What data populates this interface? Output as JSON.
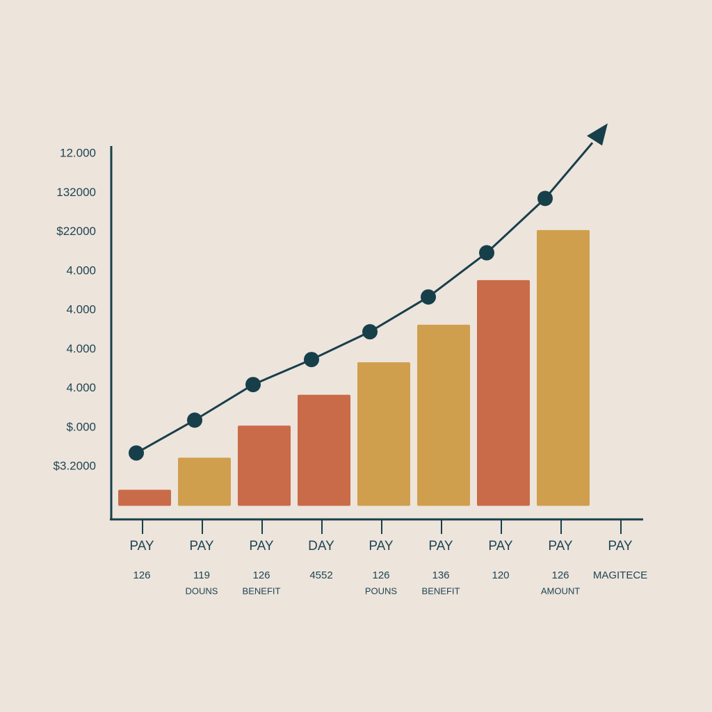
{
  "chart_data": {
    "type": "bar",
    "categories": [
      "PAY",
      "PAY",
      "PAY",
      "DAY",
      "PAY",
      "PAY",
      "PAY",
      "PAY",
      "PAY"
    ],
    "sublabels": [
      "126",
      "119",
      "126",
      "4552",
      "126",
      "136",
      "120",
      "126",
      "MAGITECE"
    ],
    "sublabels2": [
      null,
      "DOUNS",
      "BENEFIT",
      null,
      "POUNS",
      "BENEFIT",
      null,
      "AMOUNT",
      null
    ],
    "series": [
      {
        "type": "bar",
        "values": [
          0.41,
          1.23,
          2.05,
          2.84,
          3.67,
          4.63,
          5.77,
          7.05,
          null
        ],
        "colors": [
          "#c96b48",
          "#d09f4e",
          "#c96b48",
          "#c96b48",
          "#d09f4e",
          "#d09f4e",
          "#c96b48",
          "#d09f4e",
          null
        ]
      },
      {
        "type": "line",
        "color": "#173f4a",
        "values": [
          1.35,
          2.19,
          3.1,
          3.74,
          4.45,
          5.34,
          6.47,
          7.86,
          null
        ]
      }
    ],
    "ylim": [
      -0.17,
      9.2
    ],
    "yticks": [
      {
        "value": 1,
        "label": "$3.2000"
      },
      {
        "value": 2,
        "label": "$.000"
      },
      {
        "value": 3,
        "label": "4.000"
      },
      {
        "value": 4,
        "label": "4.000"
      },
      {
        "value": 5,
        "label": "4.000"
      },
      {
        "value": 6,
        "label": "4.000"
      },
      {
        "value": 7,
        "label": "$22000"
      },
      {
        "value": 8,
        "label": "132000"
      },
      {
        "value": 9,
        "label": "12.000"
      }
    ]
  }
}
